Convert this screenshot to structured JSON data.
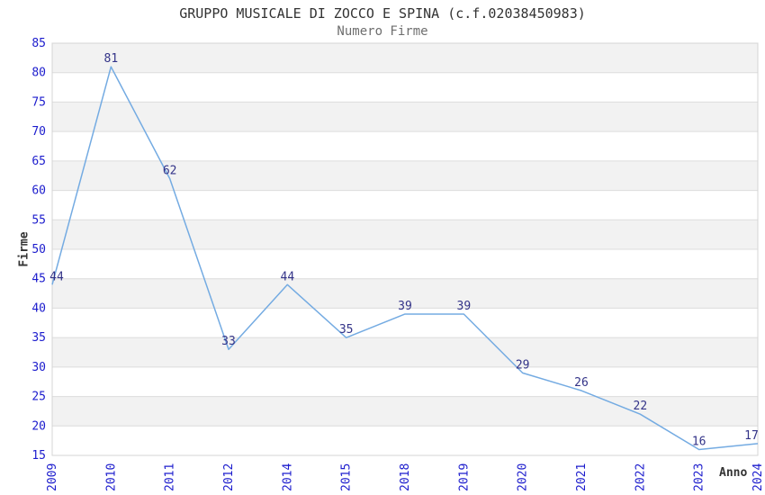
{
  "chart_data": {
    "type": "line",
    "title": "GRUPPO MUSICALE DI ZOCCO E SPINA (c.f.02038450983)",
    "subtitle": "Numero Firme",
    "xlabel": "Anno",
    "ylabel": "Firme",
    "categories": [
      "2009",
      "2010",
      "2011",
      "2012",
      "2014",
      "2015",
      "2018",
      "2019",
      "2020",
      "2021",
      "2022",
      "2023",
      "2024"
    ],
    "series": [
      {
        "name": "Numero Firme",
        "values": [
          44,
          81,
          62,
          33,
          44,
          35,
          39,
          39,
          29,
          26,
          22,
          16,
          17
        ]
      }
    ],
    "point_labels": [
      "44",
      "81",
      "62",
      "33",
      "44",
      "35",
      "39",
      "39",
      "29",
      "26",
      "22",
      "16",
      "17"
    ],
    "ylim": [
      15,
      85
    ],
    "yticks": [
      15,
      20,
      25,
      30,
      35,
      40,
      45,
      50,
      55,
      60,
      65,
      70,
      75,
      80,
      85
    ],
    "grid": "horizontal-bands-alternating",
    "legend": "none",
    "colors": {
      "line": "#74abe2",
      "tick_label": "#1c1ccd",
      "point_label": "#333388",
      "title": "#333333",
      "subtitle": "#6e6e6e",
      "axis_title": "#333333",
      "band_fill": "#f2f2f2",
      "gridline": "#dcdcdc",
      "plot_border": "#d4d4d4",
      "background": "#ffffff"
    }
  }
}
